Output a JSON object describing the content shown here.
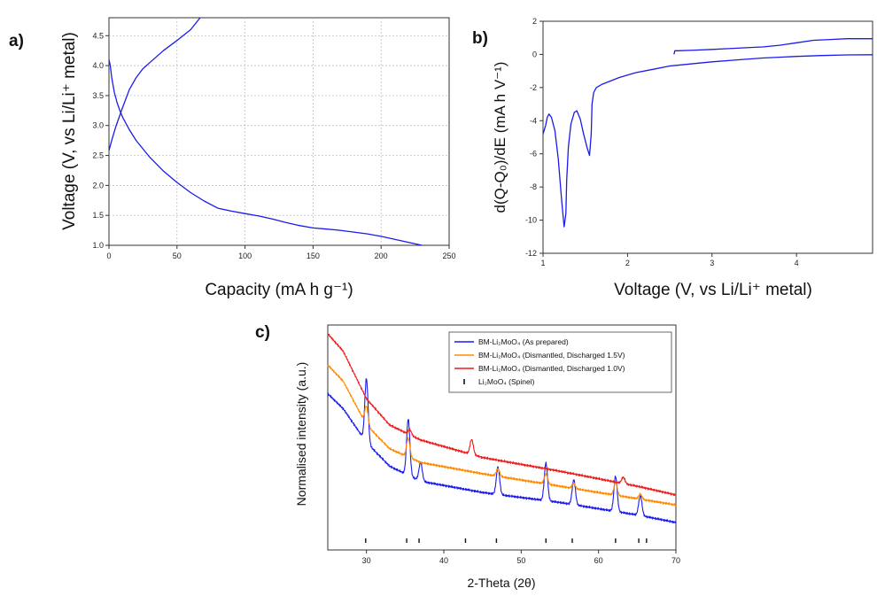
{
  "panels": {
    "a": "a)",
    "b": "b)",
    "c": "c)"
  },
  "chart_data": [
    {
      "type": "line",
      "panel": "a)",
      "xlabel": "Capacity (mA h g⁻¹)",
      "ylabel": "Voltage (V, vs Li/Li⁺ metal)",
      "xlim": [
        0,
        250
      ],
      "ylim": [
        1.0,
        4.8
      ],
      "xticks": [
        0,
        50,
        100,
        150,
        200,
        250
      ],
      "yticks": [
        1.0,
        1.5,
        2.0,
        2.5,
        3.0,
        3.5,
        4.0,
        4.5
      ],
      "grid": true,
      "color": "#1a1aee",
      "series": [
        {
          "x": [
            0,
            1,
            2,
            4,
            6,
            8,
            10,
            15,
            20,
            30,
            40,
            50,
            60,
            70,
            80,
            90,
            100,
            110,
            120,
            130,
            140,
            150,
            160,
            170,
            180,
            190,
            200,
            210,
            220,
            230
          ],
          "y": [
            4.1,
            4.0,
            3.8,
            3.55,
            3.38,
            3.25,
            3.14,
            2.93,
            2.75,
            2.47,
            2.24,
            2.05,
            1.88,
            1.74,
            1.62,
            1.57,
            1.53,
            1.49,
            1.44,
            1.38,
            1.33,
            1.29,
            1.27,
            1.25,
            1.22,
            1.19,
            1.15,
            1.1,
            1.05,
            1.0
          ]
        },
        {
          "x": [
            0,
            2,
            5,
            10,
            15,
            20,
            25,
            30,
            40,
            50,
            60,
            67
          ],
          "y": [
            2.58,
            2.75,
            2.98,
            3.3,
            3.6,
            3.8,
            3.95,
            4.05,
            4.25,
            4.42,
            4.6,
            4.8
          ]
        }
      ]
    },
    {
      "type": "line",
      "panel": "b)",
      "xlabel": "Voltage (V, vs Li/Li⁺ metal)",
      "ylabel": "d(Q-Q₀)/dE (mA h V⁻¹)",
      "xlim": [
        1,
        4.9
      ],
      "ylim": [
        -12,
        2
      ],
      "xticks": [
        1,
        2,
        3,
        4
      ],
      "yticks": [
        2,
        0,
        -2,
        -4,
        -6,
        -8,
        -10,
        -12
      ],
      "grid": false,
      "color": "#1a1aee",
      "series": [
        {
          "x": [
            1.0,
            1.03,
            1.05,
            1.07,
            1.1,
            1.14,
            1.18,
            1.22,
            1.25,
            1.27,
            1.28,
            1.3,
            1.33,
            1.37,
            1.4,
            1.44,
            1.48,
            1.52,
            1.55,
            1.57,
            1.58,
            1.6,
            1.63,
            1.7,
            1.8,
            1.9,
            2.0,
            2.1,
            2.3,
            2.5,
            2.8,
            3.0,
            3.3,
            3.6,
            4.0,
            4.3,
            4.6,
            4.9
          ],
          "y": [
            -4.8,
            -4.3,
            -3.8,
            -3.6,
            -3.8,
            -4.6,
            -6.3,
            -8.8,
            -10.4,
            -9.6,
            -7.6,
            -5.6,
            -4.2,
            -3.5,
            -3.4,
            -3.9,
            -4.8,
            -5.6,
            -6.1,
            -4.8,
            -3.0,
            -2.3,
            -2.0,
            -1.8,
            -1.6,
            -1.4,
            -1.25,
            -1.1,
            -0.9,
            -0.7,
            -0.55,
            -0.45,
            -0.33,
            -0.22,
            -0.12,
            -0.07,
            -0.03,
            -0.02
          ]
        },
        {
          "x": [
            2.55,
            2.56,
            2.6,
            2.8,
            3.0,
            3.2,
            3.4,
            3.6,
            3.8,
            4.0,
            4.2,
            4.4,
            4.6,
            4.8,
            4.9
          ],
          "y": [
            0.0,
            0.22,
            0.22,
            0.26,
            0.3,
            0.35,
            0.4,
            0.45,
            0.55,
            0.7,
            0.85,
            0.9,
            0.95,
            0.95,
            0.95
          ]
        }
      ]
    },
    {
      "type": "line",
      "panel": "c)",
      "xlabel": "2-Theta (2θ)",
      "ylabel": "Normalised intensity (a.u.)",
      "xlim": [
        25,
        70
      ],
      "xticks": [
        30,
        40,
        50,
        60,
        70
      ],
      "grid": false,
      "baseline": 0.5,
      "peak_width": 0.3,
      "legend": "top-right",
      "series": [
        {
          "name": "BM-Li₂MoO₄ (As prepared)",
          "color": "#1a1aee",
          "offset": 1.2,
          "scale": 0.1,
          "background": {
            "x": [
              25,
              27,
              30,
              33,
              37,
              45,
              55,
              65,
              70
            ],
            "y": [
              12.5,
              11.3,
              8.6,
              6.7,
              5.5,
              4.6,
              3.8,
              2.8,
              2.2
            ]
          },
          "peaks": [
            {
              "x": 30.0,
              "h": 5.1
            },
            {
              "x": 35.4,
              "h": 4.5
            },
            {
              "x": 37.0,
              "h": 1.5
            },
            {
              "x": 47.0,
              "h": 2.2
            },
            {
              "x": 53.2,
              "h": 3.0
            },
            {
              "x": 56.8,
              "h": 2.0
            },
            {
              "x": 62.2,
              "h": 2.8
            },
            {
              "x": 65.4,
              "h": 1.6
            }
          ]
        },
        {
          "name": "BM-Li₂MoO₄ (Dismantled, Discharged 1.5V)",
          "color": "#ff8a00",
          "offset": 6.2,
          "scale": 0.1,
          "background": {
            "x": [
              25,
              27,
              30,
              33,
              37,
              45,
              55,
              65,
              70
            ],
            "y": [
              14.8,
              13.5,
              10.0,
              8.1,
              7.0,
              6.1,
              5.1,
              4.1,
              3.6
            ]
          },
          "peaks": [
            {
              "x": 30.0,
              "h": 1.5
            },
            {
              "x": 35.4,
              "h": 1.5
            },
            {
              "x": 47.0,
              "h": 0.6
            },
            {
              "x": 53.2,
              "h": 0.8
            },
            {
              "x": 56.8,
              "h": 0.4
            },
            {
              "x": 62.2,
              "h": 1.0
            },
            {
              "x": 65.4,
              "h": 0.4
            }
          ]
        },
        {
          "name": "BM-Li₂MoO₄ (Dismantled, Discharged 1.0V)",
          "color": "#ee1c1c",
          "offset": 11.3,
          "scale": 0.1,
          "background": {
            "x": [
              25,
              27,
              30,
              33,
              37,
              45,
              55,
              65,
              70
            ],
            "y": [
              17.3,
              15.9,
              12.1,
              10.0,
              8.8,
              7.4,
              6.3,
              5.1,
              4.4
            ]
          },
          "peaks": [
            {
              "x": 35.6,
              "h": 0.4
            },
            {
              "x": 43.6,
              "h": 1.2
            },
            {
              "x": 63.2,
              "h": 0.5
            }
          ]
        }
      ],
      "reference": {
        "name": "Li₂MoO₄ (Spinel)",
        "color": "#111111",
        "x": [
          29.9,
          35.2,
          36.8,
          42.8,
          46.8,
          53.2,
          56.6,
          62.2,
          65.2,
          66.2
        ]
      }
    }
  ]
}
